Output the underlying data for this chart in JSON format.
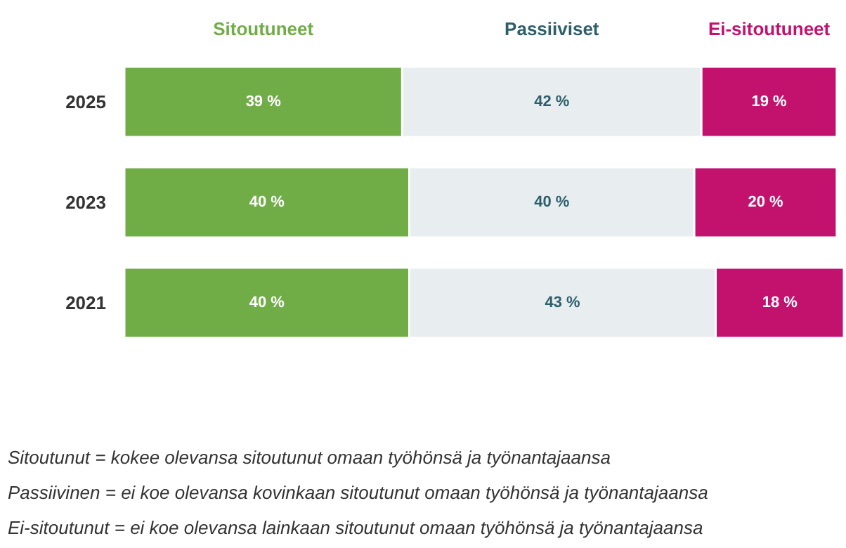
{
  "chart_data": {
    "type": "bar",
    "orientation": "horizontal",
    "stacked": true,
    "legend": "top",
    "data_labels": false,
    "grid": false,
    "categories": [
      "2025",
      "2023",
      "2021"
    ],
    "series": [
      {
        "name": "Sitoutuneet",
        "color": "#70ad47",
        "values": [
          39,
          40,
          40
        ],
        "value_labels": [
          "39 %",
          "40 %",
          "40 %"
        ]
      },
      {
        "name": "Passiiviset",
        "color": "#e8edef",
        "values": [
          42,
          40,
          43
        ],
        "value_labels": [
          "42 %",
          "40 %",
          "43 %"
        ]
      },
      {
        "name": "Ei-sitoutuneet",
        "color": "#c2126e",
        "values": [
          19,
          20,
          18
        ],
        "value_labels": [
          "19 %",
          "20 %",
          "18 %"
        ]
      }
    ],
    "annotations": [
      "Sitoutunut = kokee olevansa sitoutunut omaan työhönsä ja työnantajaansa",
      "Passiivinen = ei koe olevansa kovinkaan sitoutunut omaan työhönsä ja työnantajaansa",
      "Ei-sitoutunut = ei koe olevansa lainkaan sitoutunut omaan työhönsä ja työnantajaansa"
    ]
  }
}
